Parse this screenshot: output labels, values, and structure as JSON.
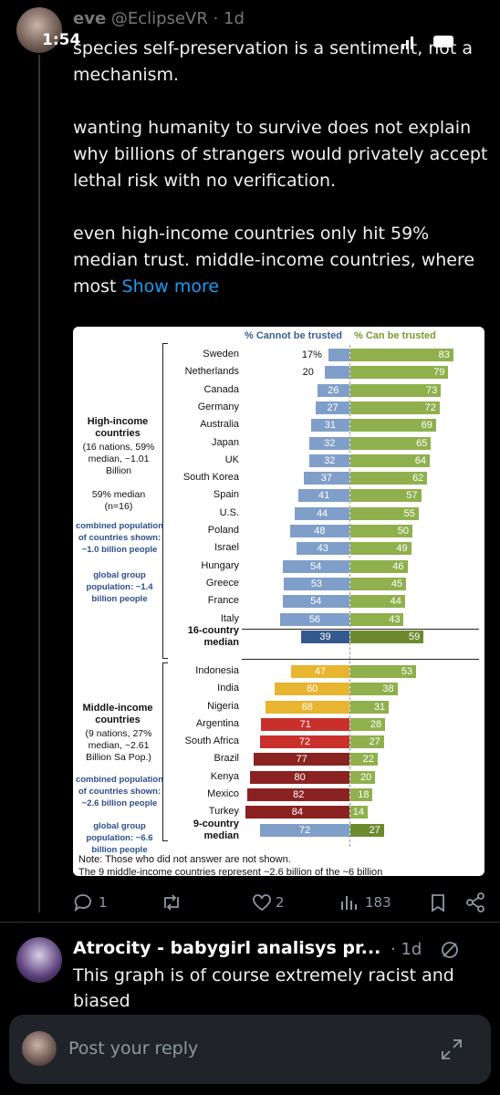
{
  "status_bar": {
    "time": "1:54"
  },
  "post": {
    "author": "eve",
    "handle_time": "@EclipseVR · 1d",
    "paragraphs": [
      "species self-preservation is a sentiment, not a mechanism.",
      "wanting humanity to survive does not explain why billions of strangers would privately accept lethal risk with no verification.",
      "even high-income countries only hit 59% median trust. middle-income countries, where most"
    ],
    "show_more": "Show more",
    "actions": {
      "replies": 1,
      "likes": 2,
      "views": 183
    }
  },
  "chart_data": {
    "type": "bar",
    "orientation": "diverging",
    "categories": [
      "Sweden",
      "Netherlands",
      "Canada",
      "Germany",
      "Australia",
      "Japan",
      "UK",
      "South Korea",
      "Spain",
      "U.S.",
      "Poland",
      "Israel",
      "Hungary",
      "Greece",
      "France",
      "Italy",
      "16-country median",
      "Indonesia",
      "India",
      "Nigeria",
      "Argentina",
      "South Africa",
      "Brazil",
      "Kenya",
      "Mexico",
      "Turkey",
      "9-country median"
    ],
    "series": [
      {
        "name": "% Cannot be trusted",
        "color": "#3a5f95",
        "values": [
          17,
          20,
          26,
          27,
          31,
          32,
          32,
          37,
          41,
          44,
          48,
          43,
          54,
          53,
          54,
          56,
          39,
          47,
          60,
          68,
          71,
          72,
          77,
          80,
          82,
          84,
          72
        ],
        "value_labels": [
          "17%",
          "20",
          "26",
          "27",
          "31",
          "32",
          "32",
          "37",
          "41",
          "44",
          "48",
          "43",
          "54",
          "53",
          "54",
          "56",
          "39",
          "47",
          "60",
          "68",
          "71",
          "72",
          "77",
          "80",
          "82",
          "84",
          "72"
        ],
        "colors": [
          "#7f9fc9",
          "#7f9fc9",
          "#7f9fc9",
          "#7f9fc9",
          "#7f9fc9",
          "#7f9fc9",
          "#7f9fc9",
          "#7f9fc9",
          "#7f9fc9",
          "#7f9fc9",
          "#7f9fc9",
          "#7f9fc9",
          "#7f9fc9",
          "#7f9fc9",
          "#7f9fc9",
          "#7f9fc9",
          "#34598f",
          "#e8b530",
          "#e8b530",
          "#e8b530",
          "#c9302c",
          "#c9302c",
          "#8b2222",
          "#8b2222",
          "#8b2222",
          "#8b2222",
          "#7f9fc9"
        ]
      },
      {
        "name": "% Can be trusted",
        "color": "#7a9a30",
        "values": [
          83,
          79,
          73,
          72,
          69,
          65,
          64,
          62,
          57,
          55,
          50,
          49,
          46,
          45,
          44,
          43,
          59,
          53,
          38,
          31,
          28,
          27,
          22,
          20,
          18,
          14,
          27
        ],
        "colors": [
          "#8fb04d",
          "#8fb04d",
          "#8fb04d",
          "#8fb04d",
          "#8fb04d",
          "#8fb04d",
          "#8fb04d",
          "#8fb04d",
          "#8fb04d",
          "#8fb04d",
          "#8fb04d",
          "#8fb04d",
          "#8fb04d",
          "#8fb04d",
          "#8fb04d",
          "#8fb04d",
          "#6d8b2e",
          "#8fb04d",
          "#8fb04d",
          "#8fb04d",
          "#8fb04d",
          "#8fb04d",
          "#8fb04d",
          "#8fb04d",
          "#8fb04d",
          "#8fb04d",
          "#6d8b2e"
        ]
      }
    ],
    "groups": [
      {
        "title": "High-income countries",
        "details": "(16 nations, 59% median, ~1.01 Billion",
        "median_note": "59% median (n=16)",
        "combined": "combined population of countries shown: ~1.0 billion people",
        "global": "global group population: ~1.4 billion people"
      },
      {
        "title": "Middle-income countries",
        "details": "(9 nations, 27% median, ~2.61 Billion Sa Pop.)",
        "combined": "combined population of countries shown: ~2.6 billion people",
        "global": "global group population: ~6.6 billion people"
      }
    ],
    "note": "Note: Those who did not answer are not shown.",
    "note_cut": "The 9 middle-income countries represent ~2.6 billion of the ~6 billion"
  },
  "reply": {
    "author": "Atrocity - babygirl analisys pr...",
    "time": "· 1d",
    "text": "This graph is of course extremely racist and biased"
  },
  "composer": {
    "placeholder": "Post your reply"
  }
}
